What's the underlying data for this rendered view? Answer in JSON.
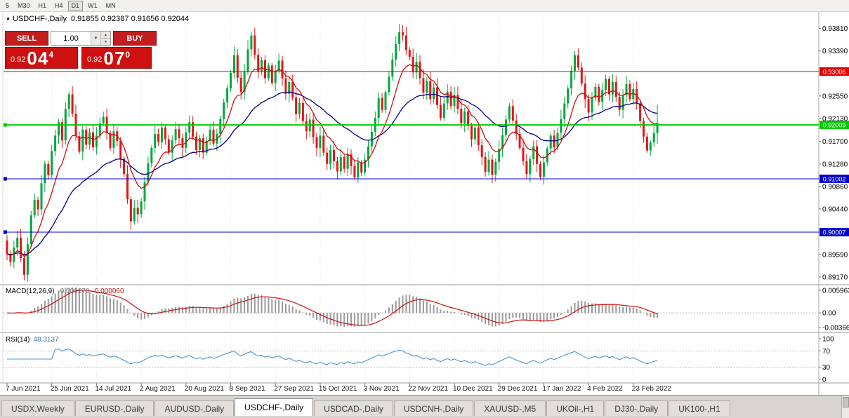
{
  "toolbar": {
    "timeframes": [
      "5",
      "M30",
      "H1",
      "H4",
      "D1",
      "W1",
      "MN"
    ],
    "active_timeframe": "D1"
  },
  "chart": {
    "title_symbol": "USDCHF-,Daily",
    "title_ohlc": "0.91855 0.92387 0.91656 0.92044"
  },
  "trade_panel": {
    "sell_label": "SELL",
    "buy_label": "BUY",
    "volume": "1.00",
    "sell_price": {
      "prefix": "0.92",
      "big": "04",
      "sup": "4"
    },
    "buy_price": {
      "prefix": "0.92",
      "big": "07",
      "sup": "0"
    }
  },
  "macd": {
    "label": "MACD(12,26,9)",
    "value_main": "-0.000270",
    "value_signal": "-0.000060",
    "fast": 12,
    "slow": 26,
    "signal_period": 9,
    "range": [
      -0.0045,
      0.0063
    ],
    "axis": [
      {
        "t": "0.005963",
        "v": 0.005963
      },
      {
        "t": "0.00",
        "v": 0
      },
      {
        "t": "-0.003664",
        "v": -0.003664
      }
    ]
  },
  "rsi": {
    "label": "RSI(14)",
    "value": "48.3137",
    "period": 14,
    "guides": [
      70,
      30
    ],
    "axis": [
      {
        "t": "100",
        "v": 100
      },
      {
        "t": "70",
        "v": 70
      },
      {
        "t": "30",
        "v": 30
      },
      {
        "t": "0",
        "v": 0
      }
    ]
  },
  "colors": {
    "bull": "#00a83c",
    "bear": "#e01717",
    "ma_fast": "#cf0e0e",
    "ma_slow": "#000080",
    "macd_hist": "#9a9a9a",
    "macd_signal": "#cf0e0e",
    "rsi_line": "#4f94cd",
    "level_red": "#dd0000",
    "level_green": "#00cc00",
    "level_blue": "#0000cc",
    "grid": "#e4e4e4"
  },
  "chart_data": {
    "type": "candlestick",
    "symbol": "USDCHF",
    "timeframe": "Daily",
    "bar_step": 4.9,
    "price_range": [
      0.8905,
      0.9408
    ],
    "first_open": 0.8985,
    "last_candle": {
      "open": 0.91855,
      "high": 0.92387,
      "low": 0.91656,
      "close": 0.92044
    },
    "ma_fast_period": 9,
    "ma_slow_period": 30,
    "closes": [
      0.896,
      0.8945,
      0.8972,
      0.899,
      0.8952,
      0.8921,
      0.8978,
      0.9032,
      0.9061,
      0.9043,
      0.9092,
      0.9128,
      0.9107,
      0.9152,
      0.9181,
      0.9206,
      0.9172,
      0.9231,
      0.9258,
      0.9222,
      0.918,
      0.9151,
      0.9192,
      0.9164,
      0.9187,
      0.9159,
      0.9181,
      0.9204,
      0.9216,
      0.9186,
      0.9158,
      0.9189,
      0.9171,
      0.9138,
      0.9109,
      0.9062,
      0.9021,
      0.9046,
      0.9034,
      0.9058,
      0.9094,
      0.9129,
      0.9158,
      0.9184,
      0.9169,
      0.9196,
      0.9174,
      0.9149,
      0.9172,
      0.9193,
      0.9176,
      0.9158,
      0.9187,
      0.9206,
      0.9179,
      0.9154,
      0.9176,
      0.9149,
      0.9171,
      0.9192,
      0.9166,
      0.9184,
      0.9212,
      0.9243,
      0.9269,
      0.9298,
      0.9331,
      0.9289,
      0.9262,
      0.9301,
      0.9342,
      0.9368,
      0.9332,
      0.9301,
      0.9322,
      0.9288,
      0.9312,
      0.9279,
      0.9302,
      0.9321,
      0.9288,
      0.9259,
      0.9281,
      0.9252,
      0.9221,
      0.9242,
      0.9208,
      0.9189,
      0.9211,
      0.9178,
      0.9158,
      0.9181,
      0.9149,
      0.9128,
      0.9154,
      0.9133,
      0.9114,
      0.9141,
      0.9119,
      0.9146,
      0.9124,
      0.9103,
      0.9131,
      0.9112,
      0.9136,
      0.9161,
      0.9188,
      0.9214,
      0.9251,
      0.9229,
      0.9262,
      0.9291,
      0.9323,
      0.9352,
      0.9374,
      0.9368,
      0.9341,
      0.9328,
      0.9299,
      0.9319,
      0.9288,
      0.9261,
      0.9283,
      0.9249,
      0.9271,
      0.9238,
      0.9214,
      0.9241,
      0.9263,
      0.9236,
      0.9257,
      0.9231,
      0.9204,
      0.9226,
      0.9199,
      0.9174,
      0.9196,
      0.9163,
      0.9141,
      0.9113,
      0.9136,
      0.9108,
      0.9132,
      0.9156,
      0.9182,
      0.9211,
      0.9236,
      0.9209,
      0.9184,
      0.9158,
      0.9133,
      0.9109,
      0.9137,
      0.9161,
      0.9128,
      0.9104,
      0.9131,
      0.9157,
      0.9181,
      0.9159,
      0.9186,
      0.9212,
      0.9241,
      0.9269,
      0.9302,
      0.9331,
      0.9308,
      0.9278,
      0.9249,
      0.9224,
      0.9251,
      0.9272,
      0.9244,
      0.9266,
      0.9287,
      0.9258,
      0.9281,
      0.9253,
      0.9229,
      0.9256,
      0.9277,
      0.9249,
      0.9268,
      0.9241,
      0.9208,
      0.9179,
      0.9153,
      0.9168,
      0.91855,
      0.92044
    ],
    "levels": [
      {
        "t": "0.93006",
        "v": 0.93006,
        "color": "#dd0000",
        "w": 1,
        "handle": false
      },
      {
        "t": "0.92009",
        "v": 0.92009,
        "color": "#00cc00",
        "w": 2,
        "handle": true
      },
      {
        "t": "0.91002",
        "v": 0.91002,
        "color": "#0000cc",
        "w": 1,
        "handle": true
      },
      {
        "t": "0.90007",
        "v": 0.90007,
        "color": "#0000cc",
        "w": 1,
        "handle": true
      }
    ],
    "y_ticks": [
      {
        "t": "0.93810",
        "v": 0.9381
      },
      {
        "t": "0.93390",
        "v": 0.9339
      },
      {
        "t": "0.92550",
        "v": 0.9255
      },
      {
        "t": "0.92130",
        "v": 0.9213
      },
      {
        "t": "0.91700",
        "v": 0.917
      },
      {
        "t": "0.91280",
        "v": 0.9128
      },
      {
        "t": "0.90860",
        "v": 0.9086
      },
      {
        "t": "0.90440",
        "v": 0.9044
      },
      {
        "t": "0.89590",
        "v": 0.8959
      },
      {
        "t": "0.89170",
        "v": 0.8917
      }
    ],
    "x_labels": [
      "7 Jun 2021",
      "25 Jun 2021",
      "14 Jul 2021",
      "2 Aug 2021",
      "20 Aug 2021",
      "8 Sep 2021",
      "27 Sep 2021",
      "15 Oct 2021",
      "3 Nov 2021",
      "22 Nov 2021",
      "10 Dec 2021",
      "29 Dec 2021",
      "17 Jan 2022",
      "4 Feb 2022",
      "23 Feb 2022"
    ],
    "bars_per_label": 13
  },
  "tabs": [
    {
      "label": "USDX,Weekly",
      "active": false
    },
    {
      "label": "EURUSD-,Daily",
      "active": false
    },
    {
      "label": "AUDUSD-,Daily",
      "active": false
    },
    {
      "label": "USDCHF-,Daily",
      "active": true
    },
    {
      "label": "USDCAD-,Daily",
      "active": false
    },
    {
      "label": "USDCNH-,Daily",
      "active": false
    },
    {
      "label": "XAUUSD-,M5",
      "active": false
    },
    {
      "label": "UKOil-,H1",
      "active": false
    },
    {
      "label": "DJ30-,Daily",
      "active": false
    },
    {
      "label": "UK100-,H1",
      "active": false
    }
  ]
}
